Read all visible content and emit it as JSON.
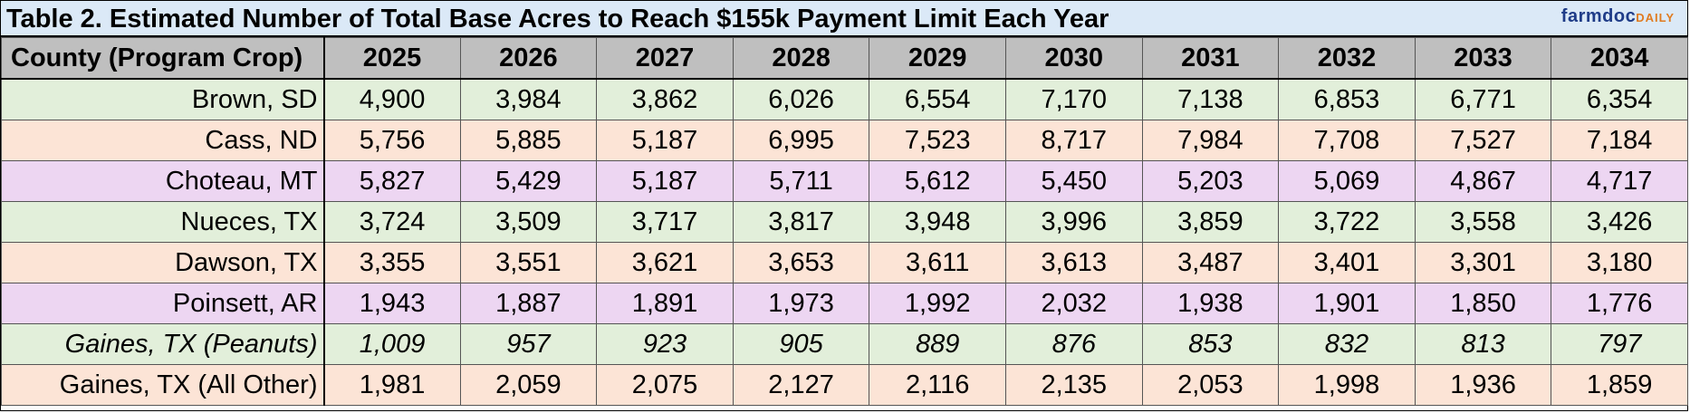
{
  "title": "Table 2. Estimated Number of Total Base Acres to Reach $155k Payment Limit Each Year",
  "logo": {
    "main": "farmdoc",
    "sub": "DAILY"
  },
  "columns": [
    "County (Program Crop)",
    "2025",
    "2026",
    "2027",
    "2028",
    "2029",
    "2030",
    "2031",
    "2032",
    "2033",
    "2034"
  ],
  "rows": [
    {
      "county": "Brown, SD",
      "style": "green",
      "values": [
        "4,900",
        "3,984",
        "3,862",
        "6,026",
        "6,554",
        "7,170",
        "7,138",
        "6,853",
        "6,771",
        "6,354"
      ]
    },
    {
      "county": "Cass, ND",
      "style": "peach",
      "values": [
        "5,756",
        "5,885",
        "5,187",
        "6,995",
        "7,523",
        "8,717",
        "7,984",
        "7,708",
        "7,527",
        "7,184"
      ]
    },
    {
      "county": "Choteau, MT",
      "style": "violet",
      "values": [
        "5,827",
        "5,429",
        "5,187",
        "5,711",
        "5,612",
        "5,450",
        "5,203",
        "5,069",
        "4,867",
        "4,717"
      ]
    },
    {
      "county": "Nueces, TX",
      "style": "green",
      "values": [
        "3,724",
        "3,509",
        "3,717",
        "3,817",
        "3,948",
        "3,996",
        "3,859",
        "3,722",
        "3,558",
        "3,426"
      ]
    },
    {
      "county": "Dawson, TX",
      "style": "peach",
      "values": [
        "3,355",
        "3,551",
        "3,621",
        "3,653",
        "3,611",
        "3,613",
        "3,487",
        "3,401",
        "3,301",
        "3,180"
      ]
    },
    {
      "county": "Poinsett, AR",
      "style": "violet",
      "values": [
        "1,943",
        "1,887",
        "1,891",
        "1,973",
        "1,992",
        "2,032",
        "1,938",
        "1,901",
        "1,850",
        "1,776"
      ]
    },
    {
      "county": "Gaines, TX (Peanuts)",
      "style": "green italic",
      "values": [
        "1,009",
        "957",
        "923",
        "905",
        "889",
        "876",
        "853",
        "832",
        "813",
        "797"
      ]
    },
    {
      "county": "Gaines, TX (All Other)",
      "style": "peach",
      "values": [
        "1,981",
        "2,059",
        "2,075",
        "2,127",
        "2,116",
        "2,135",
        "2,053",
        "1,998",
        "1,936",
        "1,859"
      ]
    }
  ],
  "colors": {
    "header": "#bfbfbf",
    "green": "#e2efda",
    "peach": "#fce4d6",
    "violet": "#edd6f2",
    "title_bg": "#dbe9f7"
  }
}
